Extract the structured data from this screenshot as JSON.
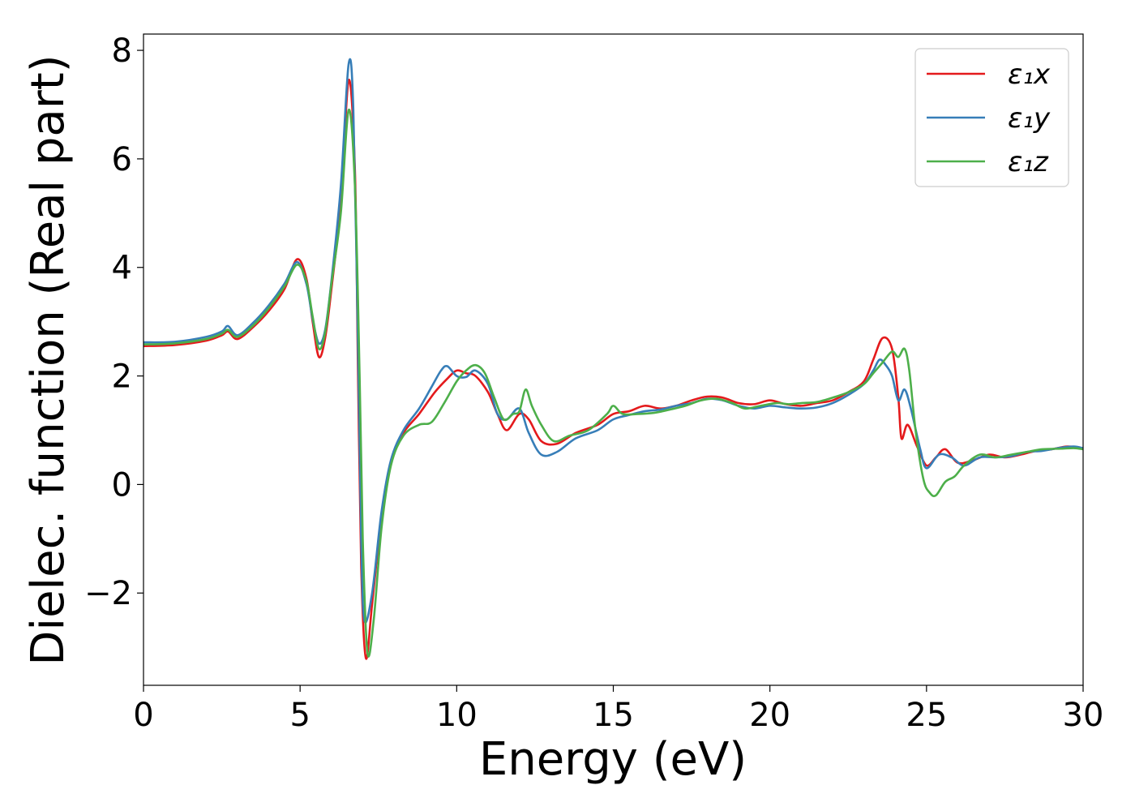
{
  "chart_data": {
    "type": "line",
    "xlabel": "Energy (eV)",
    "ylabel": "Dielec. function (Real part)",
    "xlim": [
      0,
      30
    ],
    "ylim": [
      -3.7,
      8.3
    ],
    "xticks": [
      0,
      5,
      10,
      15,
      20,
      25,
      30
    ],
    "yticks": [
      -2,
      0,
      2,
      4,
      6,
      8
    ],
    "xtick_labels": [
      "0",
      "5",
      "10",
      "15",
      "20",
      "25",
      "30"
    ],
    "ytick_labels": [
      "−2",
      "0",
      "2",
      "4",
      "6",
      "8"
    ],
    "grid": false,
    "legend_position": "top-right",
    "series": [
      {
        "name": "ε₁x",
        "color": "#e41a1c",
        "points": [
          [
            0,
            2.55
          ],
          [
            1,
            2.57
          ],
          [
            2,
            2.65
          ],
          [
            2.5,
            2.75
          ],
          [
            2.7,
            2.82
          ],
          [
            3.0,
            2.68
          ],
          [
            3.5,
            2.9
          ],
          [
            4.0,
            3.2
          ],
          [
            4.5,
            3.6
          ],
          [
            4.9,
            4.15
          ],
          [
            5.2,
            3.8
          ],
          [
            5.4,
            3.0
          ],
          [
            5.6,
            2.35
          ],
          [
            5.8,
            2.7
          ],
          [
            6.0,
            3.6
          ],
          [
            6.3,
            5.2
          ],
          [
            6.55,
            7.45
          ],
          [
            6.75,
            5.8
          ],
          [
            6.85,
            2.0
          ],
          [
            6.95,
            -1.5
          ],
          [
            7.1,
            -3.2
          ],
          [
            7.3,
            -2.2
          ],
          [
            7.6,
            -0.6
          ],
          [
            7.9,
            0.4
          ],
          [
            8.3,
            0.95
          ],
          [
            8.8,
            1.3
          ],
          [
            9.3,
            1.7
          ],
          [
            9.7,
            1.95
          ],
          [
            10.0,
            2.1
          ],
          [
            10.3,
            2.05
          ],
          [
            10.6,
            2.0
          ],
          [
            11.0,
            1.7
          ],
          [
            11.3,
            1.3
          ],
          [
            11.6,
            1.0
          ],
          [
            12.0,
            1.3
          ],
          [
            12.3,
            1.2
          ],
          [
            12.7,
            0.8
          ],
          [
            13.2,
            0.75
          ],
          [
            13.8,
            0.95
          ],
          [
            14.5,
            1.1
          ],
          [
            15.0,
            1.3
          ],
          [
            15.5,
            1.35
          ],
          [
            16.0,
            1.45
          ],
          [
            16.5,
            1.4
          ],
          [
            17.0,
            1.45
          ],
          [
            17.5,
            1.55
          ],
          [
            18.0,
            1.62
          ],
          [
            18.5,
            1.6
          ],
          [
            19.0,
            1.5
          ],
          [
            19.5,
            1.48
          ],
          [
            20.0,
            1.55
          ],
          [
            20.5,
            1.48
          ],
          [
            21.0,
            1.45
          ],
          [
            21.5,
            1.5
          ],
          [
            22.0,
            1.55
          ],
          [
            22.5,
            1.7
          ],
          [
            23.0,
            1.9
          ],
          [
            23.3,
            2.3
          ],
          [
            23.6,
            2.7
          ],
          [
            23.9,
            2.5
          ],
          [
            24.1,
            1.6
          ],
          [
            24.2,
            0.85
          ],
          [
            24.4,
            1.1
          ],
          [
            24.7,
            0.7
          ],
          [
            25.0,
            0.35
          ],
          [
            25.3,
            0.5
          ],
          [
            25.6,
            0.65
          ],
          [
            26.0,
            0.4
          ],
          [
            26.5,
            0.45
          ],
          [
            27.0,
            0.55
          ],
          [
            27.5,
            0.5
          ],
          [
            28.0,
            0.55
          ],
          [
            28.5,
            0.62
          ],
          [
            29.0,
            0.65
          ],
          [
            29.5,
            0.7
          ],
          [
            30,
            0.67
          ]
        ]
      },
      {
        "name": "ε₁y",
        "color": "#377eb8",
        "points": [
          [
            0,
            2.62
          ],
          [
            1,
            2.63
          ],
          [
            2,
            2.72
          ],
          [
            2.5,
            2.82
          ],
          [
            2.7,
            2.92
          ],
          [
            3.0,
            2.75
          ],
          [
            3.5,
            2.98
          ],
          [
            4.0,
            3.3
          ],
          [
            4.5,
            3.7
          ],
          [
            4.9,
            4.1
          ],
          [
            5.2,
            3.7
          ],
          [
            5.4,
            3.05
          ],
          [
            5.6,
            2.6
          ],
          [
            5.8,
            2.85
          ],
          [
            6.0,
            3.75
          ],
          [
            6.3,
            5.5
          ],
          [
            6.55,
            7.75
          ],
          [
            6.7,
            6.9
          ],
          [
            6.85,
            2.5
          ],
          [
            6.95,
            -1.0
          ],
          [
            7.05,
            -2.5
          ],
          [
            7.3,
            -2.0
          ],
          [
            7.6,
            -0.5
          ],
          [
            7.9,
            0.45
          ],
          [
            8.3,
            1.0
          ],
          [
            8.8,
            1.4
          ],
          [
            9.2,
            1.8
          ],
          [
            9.5,
            2.1
          ],
          [
            9.7,
            2.18
          ],
          [
            10.0,
            2.0
          ],
          [
            10.3,
            1.98
          ],
          [
            10.6,
            2.1
          ],
          [
            11.0,
            1.85
          ],
          [
            11.3,
            1.3
          ],
          [
            11.6,
            1.2
          ],
          [
            12.0,
            1.4
          ],
          [
            12.3,
            0.95
          ],
          [
            12.7,
            0.55
          ],
          [
            13.2,
            0.6
          ],
          [
            13.8,
            0.85
          ],
          [
            14.5,
            1.0
          ],
          [
            15.0,
            1.2
          ],
          [
            15.5,
            1.28
          ],
          [
            16.0,
            1.35
          ],
          [
            16.5,
            1.38
          ],
          [
            17.0,
            1.45
          ],
          [
            17.5,
            1.5
          ],
          [
            18.0,
            1.58
          ],
          [
            18.5,
            1.55
          ],
          [
            19.0,
            1.45
          ],
          [
            19.5,
            1.4
          ],
          [
            20.0,
            1.45
          ],
          [
            20.5,
            1.42
          ],
          [
            21.0,
            1.4
          ],
          [
            21.5,
            1.42
          ],
          [
            22.0,
            1.5
          ],
          [
            22.5,
            1.65
          ],
          [
            23.0,
            1.85
          ],
          [
            23.3,
            2.1
          ],
          [
            23.5,
            2.3
          ],
          [
            23.7,
            2.2
          ],
          [
            23.9,
            2.0
          ],
          [
            24.1,
            1.55
          ],
          [
            24.3,
            1.75
          ],
          [
            24.5,
            1.4
          ],
          [
            24.8,
            0.65
          ],
          [
            25.0,
            0.3
          ],
          [
            25.4,
            0.55
          ],
          [
            25.8,
            0.5
          ],
          [
            26.2,
            0.35
          ],
          [
            26.7,
            0.5
          ],
          [
            27.2,
            0.5
          ],
          [
            27.7,
            0.52
          ],
          [
            28.2,
            0.6
          ],
          [
            28.7,
            0.62
          ],
          [
            29.3,
            0.68
          ],
          [
            29.7,
            0.7
          ],
          [
            30,
            0.67
          ]
        ]
      },
      {
        "name": "ε₁z",
        "color": "#4daf4a",
        "points": [
          [
            0,
            2.58
          ],
          [
            1,
            2.6
          ],
          [
            2,
            2.68
          ],
          [
            2.5,
            2.78
          ],
          [
            2.7,
            2.85
          ],
          [
            3.0,
            2.72
          ],
          [
            3.5,
            2.93
          ],
          [
            4.0,
            3.25
          ],
          [
            4.5,
            3.65
          ],
          [
            4.9,
            4.05
          ],
          [
            5.2,
            3.75
          ],
          [
            5.4,
            3.1
          ],
          [
            5.6,
            2.5
          ],
          [
            5.8,
            2.8
          ],
          [
            6.0,
            3.7
          ],
          [
            6.3,
            5.0
          ],
          [
            6.55,
            6.9
          ],
          [
            6.75,
            5.5
          ],
          [
            6.9,
            2.0
          ],
          [
            7.0,
            -1.0
          ],
          [
            7.15,
            -3.1
          ],
          [
            7.35,
            -2.5
          ],
          [
            7.6,
            -0.8
          ],
          [
            7.9,
            0.35
          ],
          [
            8.3,
            0.9
          ],
          [
            8.8,
            1.1
          ],
          [
            9.2,
            1.15
          ],
          [
            9.6,
            1.5
          ],
          [
            10.0,
            1.9
          ],
          [
            10.3,
            2.1
          ],
          [
            10.6,
            2.2
          ],
          [
            10.9,
            2.05
          ],
          [
            11.2,
            1.6
          ],
          [
            11.5,
            1.2
          ],
          [
            11.8,
            1.3
          ],
          [
            12.0,
            1.35
          ],
          [
            12.2,
            1.75
          ],
          [
            12.4,
            1.45
          ],
          [
            12.7,
            1.1
          ],
          [
            13.1,
            0.8
          ],
          [
            13.6,
            0.9
          ],
          [
            14.2,
            1.0
          ],
          [
            14.8,
            1.3
          ],
          [
            15.0,
            1.45
          ],
          [
            15.3,
            1.3
          ],
          [
            15.8,
            1.3
          ],
          [
            16.3,
            1.32
          ],
          [
            16.8,
            1.38
          ],
          [
            17.3,
            1.45
          ],
          [
            17.8,
            1.55
          ],
          [
            18.3,
            1.58
          ],
          [
            18.8,
            1.5
          ],
          [
            19.2,
            1.4
          ],
          [
            19.7,
            1.45
          ],
          [
            20.2,
            1.5
          ],
          [
            20.6,
            1.48
          ],
          [
            21.0,
            1.5
          ],
          [
            21.5,
            1.52
          ],
          [
            22.0,
            1.6
          ],
          [
            22.5,
            1.7
          ],
          [
            23.0,
            1.85
          ],
          [
            23.3,
            2.05
          ],
          [
            23.6,
            2.25
          ],
          [
            23.9,
            2.45
          ],
          [
            24.1,
            2.35
          ],
          [
            24.3,
            2.5
          ],
          [
            24.45,
            2.1
          ],
          [
            24.65,
            1.0
          ],
          [
            24.9,
            0.1
          ],
          [
            25.1,
            -0.15
          ],
          [
            25.3,
            -0.2
          ],
          [
            25.6,
            0.05
          ],
          [
            25.9,
            0.15
          ],
          [
            26.2,
            0.35
          ],
          [
            26.7,
            0.55
          ],
          [
            27.2,
            0.5
          ],
          [
            27.7,
            0.55
          ],
          [
            28.2,
            0.6
          ],
          [
            28.7,
            0.65
          ],
          [
            29.3,
            0.66
          ],
          [
            29.7,
            0.67
          ],
          [
            30,
            0.65
          ]
        ]
      }
    ]
  }
}
